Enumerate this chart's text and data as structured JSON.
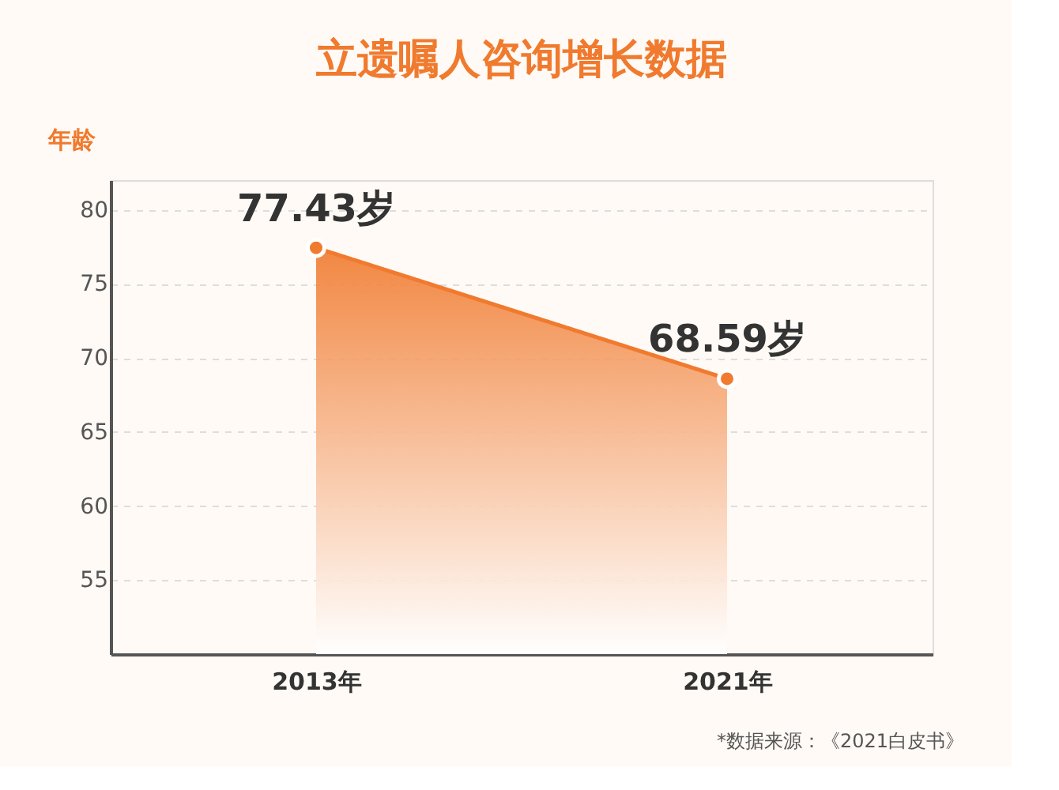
{
  "chart_data": {
    "type": "area",
    "title": "立遗嘱人咨询增长数据",
    "ylabel": "年龄",
    "categories": [
      "2013年",
      "2021年"
    ],
    "series": [
      {
        "color": "#f07a2e",
        "values": [
          77.43,
          68.59
        ],
        "value_labels": [
          "77.43岁",
          "68.59岁"
        ]
      }
    ],
    "ylim": [
      50,
      82
    ],
    "yticks": [
      55,
      60,
      65,
      70,
      75,
      80
    ],
    "grid": "y",
    "marker": "circle",
    "annotations": [
      "*数据来源：《2021白皮书》"
    ]
  }
}
